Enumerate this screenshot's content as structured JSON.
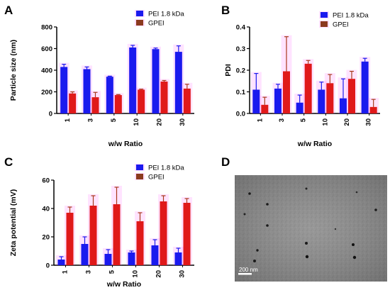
{
  "panels": [
    "A",
    "B",
    "C",
    "D"
  ],
  "colors": {
    "pei": "#1a1aee",
    "gpei": "#e0191a",
    "gpei_legend": "#8b3a1e",
    "halo": "#ff66ff",
    "error_bar": "#1a1aee",
    "error_bar_gpei": "#a83a1a"
  },
  "chart_data": [
    {
      "panel": "A",
      "type": "bar",
      "xlabel": "w/w Ratio",
      "ylabel": "Particle size (nm)",
      "categories": [
        "1",
        "3",
        "5",
        "10",
        "20",
        "30"
      ],
      "ylim": [
        0,
        800
      ],
      "yticks": [
        "0",
        "200",
        "400",
        "600",
        "800"
      ],
      "legend_position": "top-right",
      "series": [
        {
          "name": "PEI 1.8 kDa",
          "values": [
            430,
            410,
            340,
            610,
            595,
            570
          ],
          "errors": [
            25,
            20,
            5,
            20,
            10,
            55
          ]
        },
        {
          "name": "GPEI",
          "values": [
            185,
            150,
            170,
            220,
            295,
            230
          ],
          "errors": [
            15,
            45,
            5,
            5,
            10,
            40
          ]
        }
      ]
    },
    {
      "panel": "B",
      "type": "bar",
      "xlabel": "w/w Ratio",
      "ylabel": "PDI",
      "categories": [
        "1",
        "3",
        "5",
        "10",
        "20",
        "30"
      ],
      "ylim": [
        0,
        0.4
      ],
      "yticks": [
        "0.0",
        "0.1",
        "0.2",
        "0.3",
        "0.4"
      ],
      "legend_position": "top-right",
      "series": [
        {
          "name": "PEI 1.8 kDa",
          "values": [
            0.11,
            0.115,
            0.05,
            0.11,
            0.07,
            0.24
          ],
          "errors": [
            0.075,
            0.02,
            0.035,
            0.035,
            0.09,
            0.015
          ]
        },
        {
          "name": "GPEI",
          "values": [
            0.04,
            0.195,
            0.23,
            0.14,
            0.16,
            0.03
          ],
          "errors": [
            0.035,
            0.16,
            0.015,
            0.04,
            0.035,
            0.035
          ]
        }
      ]
    },
    {
      "panel": "C",
      "type": "bar",
      "xlabel": "w/w Ratio",
      "ylabel": "Zeta potential (mV)",
      "categories": [
        "1",
        "3",
        "5",
        "10",
        "20",
        "30"
      ],
      "ylim": [
        0,
        60
      ],
      "yticks": [
        "0",
        "20",
        "40",
        "60"
      ],
      "legend_position": "top-right",
      "series": [
        {
          "name": "PEI 1.8 kDa",
          "values": [
            4,
            15,
            8,
            9,
            14,
            9
          ],
          "errors": [
            2,
            5,
            3,
            1,
            4,
            3
          ]
        },
        {
          "name": "GPEI",
          "values": [
            37,
            42,
            43,
            31,
            45,
            44
          ],
          "errors": [
            4,
            7,
            12,
            6,
            4,
            3
          ]
        }
      ]
    }
  ],
  "micrograph": {
    "panel": "D",
    "scale_bar_label": "200 nm"
  }
}
